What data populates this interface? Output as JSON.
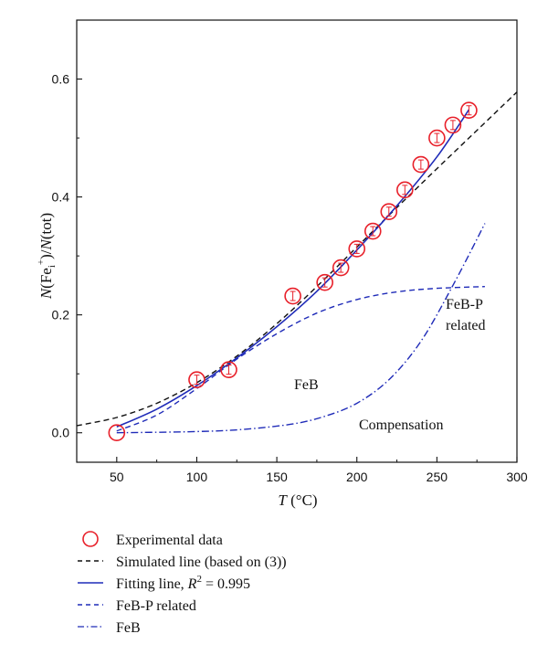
{
  "chart_data": {
    "type": "line",
    "xlabel_symbol": "T",
    "xlabel_unit": " (°C)",
    "ylabel_parts": {
      "prefix": "N",
      "open": "(Fe",
      "sub": "i",
      "sup": "+",
      "close": ")/",
      "n2": "N",
      "tail": "(tot)"
    },
    "xlim": [
      25,
      300
    ],
    "ylim": [
      -0.05,
      0.7
    ],
    "xticks": [
      50,
      100,
      150,
      200,
      250,
      300
    ],
    "yticks": [
      0.0,
      0.2,
      0.4,
      0.6
    ],
    "ytick_labels": [
      "0.0",
      "0.2",
      "0.4",
      "0.6"
    ],
    "grid": false,
    "legend_position": "below",
    "annotations": {
      "feb": "FeB",
      "febp_line1": "FeB-P",
      "febp_line2": "related",
      "compensation": "Compensation"
    },
    "series": [
      {
        "name": "Experimental data",
        "kind": "scatter",
        "color": "#e8202a",
        "x": [
          50,
          100,
          120,
          160,
          180,
          190,
          200,
          210,
          220,
          230,
          240,
          250,
          260,
          270
        ],
        "y": [
          0.0,
          0.09,
          0.107,
          0.232,
          0.255,
          0.28,
          0.312,
          0.342,
          0.375,
          0.412,
          0.455,
          0.5,
          0.522,
          0.547
        ]
      },
      {
        "name": "Simulated line (based on (3))",
        "kind": "line",
        "style": "dashed",
        "color": "#111111",
        "x": [
          25,
          50,
          75,
          100,
          125,
          150,
          175,
          200,
          225,
          250,
          275,
          300
        ],
        "y": [
          0.012,
          0.026,
          0.05,
          0.085,
          0.13,
          0.185,
          0.248,
          0.315,
          0.382,
          0.448,
          0.513,
          0.578
        ]
      },
      {
        "name_main": "Fitting line, ",
        "name_var": "R",
        "name_sup": "2",
        "name_tail": " = 0.995",
        "kind": "line",
        "style": "solid",
        "color": "#1f2bb8",
        "x": [
          50,
          75,
          100,
          125,
          150,
          175,
          200,
          225,
          250,
          270
        ],
        "y": [
          0.01,
          0.04,
          0.08,
          0.127,
          0.18,
          0.24,
          0.31,
          0.385,
          0.468,
          0.548
        ]
      },
      {
        "name": "FeB-P related",
        "kind": "line",
        "style": "dashed",
        "color": "#1f2bb8",
        "x": [
          50,
          75,
          100,
          125,
          150,
          175,
          200,
          225,
          250,
          280
        ],
        "y": [
          0.003,
          0.03,
          0.075,
          0.125,
          0.168,
          0.203,
          0.226,
          0.239,
          0.245,
          0.248
        ]
      },
      {
        "name": "FeB",
        "kind": "line",
        "style": "dashdot",
        "color": "#1f2bb8",
        "x": [
          50,
          100,
          130,
          160,
          180,
          200,
          220,
          240,
          260,
          280
        ],
        "y": [
          0.0,
          0.002,
          0.006,
          0.015,
          0.028,
          0.05,
          0.09,
          0.155,
          0.25,
          0.355
        ]
      }
    ]
  }
}
